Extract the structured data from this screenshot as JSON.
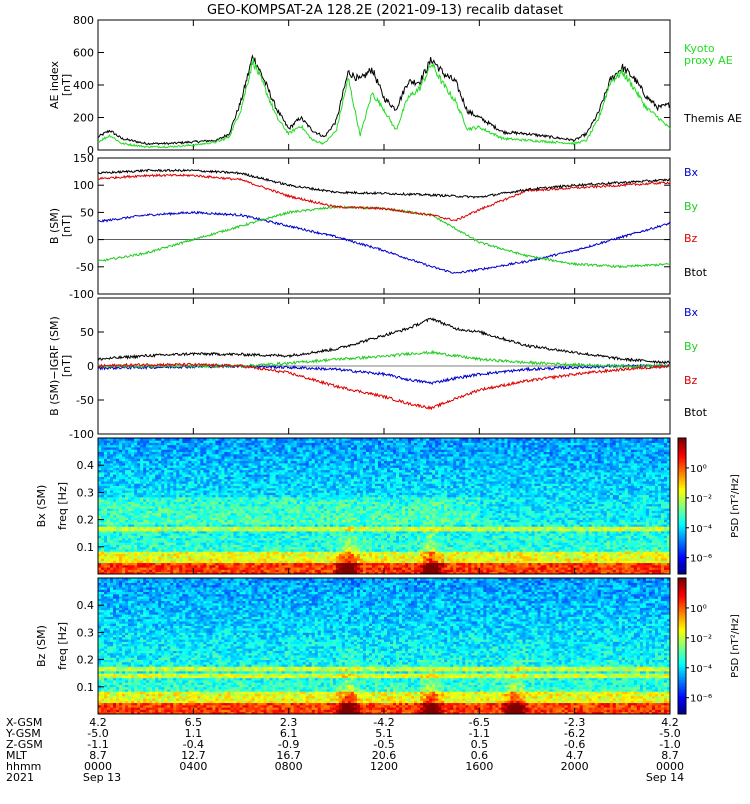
{
  "title": "GEO-KOMPSAT-2A 128.2E (2021-09-13) recalib dataset",
  "panels": {
    "ae": {
      "ylabel_line1": "AE index",
      "ylabel_line2": "[nT]",
      "yticks": [
        "800",
        "600",
        "400",
        "200",
        "0"
      ],
      "legend": [
        {
          "text": "Kyoto",
          "color": "#22dd22"
        },
        {
          "text": "proxy AE",
          "color": "#22dd22"
        },
        {
          "text": "Themis AE",
          "color": "#000000"
        }
      ]
    },
    "bsm": {
      "ylabel_line1": "B (SM)",
      "ylabel_line2": "[nT]",
      "yticks": [
        "150",
        "100",
        "50",
        "0",
        "-50",
        "-100"
      ],
      "legend": [
        {
          "text": "Bx",
          "color": "#0000cc"
        },
        {
          "text": "By",
          "color": "#22cc22"
        },
        {
          "text": "Bz",
          "color": "#dd0000"
        },
        {
          "text": "Btot",
          "color": "#000000"
        }
      ]
    },
    "bres": {
      "ylabel_line1": "B (SM)−IGRF (SM)",
      "ylabel_line2": "[nT]",
      "yticks": [
        "50",
        "0",
        "-50",
        "-100"
      ],
      "legend": [
        {
          "text": "Bx",
          "color": "#0000cc"
        },
        {
          "text": "By",
          "color": "#22cc22"
        },
        {
          "text": "Bz",
          "color": "#dd0000"
        },
        {
          "text": "Btot",
          "color": "#000000"
        }
      ]
    },
    "spec_bx": {
      "ylabel_line1": "Bx (SM)",
      "ylabel_line2": "freq [Hz]",
      "yticks": [
        "0.4",
        "0.3",
        "0.2",
        "0.1"
      ],
      "cbar_label": "PSD [nT²/Hz]",
      "cbar_ticks": [
        "10⁰",
        "10⁻²",
        "10⁻⁴",
        "10⁻⁶"
      ]
    },
    "spec_bz": {
      "ylabel_line1": "Bz (SM)",
      "ylabel_line2": "freq [Hz]",
      "yticks": [
        "0.4",
        "0.3",
        "0.2",
        "0.1"
      ],
      "cbar_label": "PSD [nT²/Hz]",
      "cbar_ticks": [
        "10⁰",
        "10⁻²",
        "10⁻⁴",
        "10⁻⁶"
      ]
    }
  },
  "ephemeris": {
    "rows": [
      {
        "label": "X-GSM",
        "values": [
          "4.2",
          "6.5",
          "2.3",
          "-4.2",
          "-6.5",
          "-2.3",
          "4.2"
        ]
      },
      {
        "label": "Y-GSM",
        "values": [
          "-5.0",
          "1.1",
          "6.1",
          "5.1",
          "-1.1",
          "-6.2",
          "-5.0"
        ]
      },
      {
        "label": "Z-GSM",
        "values": [
          "-1.1",
          "-0.4",
          "-0.9",
          "-0.5",
          "0.5",
          "-0.6",
          "-1.0"
        ]
      },
      {
        "label": "MLT",
        "values": [
          "8.7",
          "12.7",
          "16.7",
          "20.6",
          "0.6",
          "4.7",
          "8.7"
        ]
      },
      {
        "label": "hhmm",
        "values": [
          "0000",
          "0400",
          "0800",
          "1200",
          "1600",
          "2000",
          "0000"
        ]
      }
    ],
    "date_row": {
      "label": "2021",
      "start": "Sep 13",
      "end": "Sep 14"
    }
  },
  "chart_data": [
    {
      "type": "line",
      "panel": "AE index",
      "x_unit": "hours UT (2021-09-13)",
      "ylim": [
        0,
        800
      ],
      "series": [
        {
          "name": "Themis AE",
          "color": "#000000",
          "x": [
            0,
            0.5,
            1,
            2,
            3,
            4,
            5,
            5.5,
            6,
            6.5,
            7,
            7.5,
            8,
            8.5,
            9,
            9.5,
            10,
            10.5,
            11,
            11.5,
            12,
            12.5,
            13,
            13.5,
            14,
            14.5,
            15,
            15.5,
            16,
            17,
            18,
            19,
            20,
            20.5,
            21,
            21.5,
            22,
            22.5,
            23,
            23.5,
            24
          ],
          "y": [
            80,
            120,
            70,
            40,
            40,
            50,
            60,
            100,
            300,
            580,
            420,
            250,
            130,
            200,
            120,
            80,
            180,
            480,
            430,
            500,
            320,
            250,
            420,
            420,
            560,
            470,
            420,
            240,
            200,
            110,
            100,
            80,
            60,
            100,
            230,
            430,
            510,
            440,
            330,
            260,
            280
          ]
        },
        {
          "name": "Kyoto proxy AE",
          "color": "#22dd22",
          "x": [
            0,
            0.5,
            1,
            2,
            3,
            4,
            5,
            5.5,
            6,
            6.5,
            7,
            7.5,
            8,
            8.5,
            9,
            9.5,
            10,
            10.5,
            11,
            11.5,
            12,
            12.5,
            13,
            13.5,
            14,
            14.5,
            15,
            15.5,
            16,
            17,
            18,
            19,
            20,
            20.5,
            21,
            21.5,
            22,
            22.5,
            23,
            23.5,
            24
          ],
          "y": [
            50,
            90,
            40,
            20,
            20,
            30,
            50,
            80,
            250,
            550,
            380,
            200,
            100,
            150,
            60,
            40,
            120,
            440,
            90,
            350,
            250,
            120,
            320,
            380,
            530,
            400,
            300,
            130,
            140,
            70,
            60,
            50,
            40,
            60,
            190,
            420,
            480,
            380,
            260,
            200,
            130
          ]
        }
      ]
    },
    {
      "type": "line",
      "panel": "B (SM)",
      "x_unit": "hours UT (2021-09-13)",
      "ylim": [
        -100,
        150
      ],
      "series": [
        {
          "name": "Bx",
          "color": "#0000cc",
          "x": [
            0,
            2,
            4,
            6,
            8,
            10,
            12,
            14,
            15,
            16,
            18,
            20,
            22,
            24
          ],
          "y": [
            33,
            45,
            50,
            45,
            25,
            5,
            -20,
            -50,
            -62,
            -55,
            -40,
            -20,
            5,
            30
          ]
        },
        {
          "name": "By",
          "color": "#22cc22",
          "x": [
            0,
            2,
            4,
            6,
            8,
            10,
            12,
            14,
            15,
            16,
            18,
            20,
            22,
            24
          ],
          "y": [
            -40,
            -25,
            0,
            25,
            50,
            60,
            57,
            45,
            20,
            -5,
            -30,
            -45,
            -50,
            -45
          ]
        },
        {
          "name": "Bz",
          "color": "#dd0000",
          "x": [
            0,
            2,
            4,
            6,
            8,
            10,
            12,
            14,
            15,
            16,
            18,
            20,
            22,
            24
          ],
          "y": [
            112,
            118,
            118,
            110,
            80,
            60,
            57,
            45,
            35,
            55,
            90,
            95,
            100,
            105
          ]
        },
        {
          "name": "Btot",
          "color": "#000000",
          "x": [
            0,
            2,
            4,
            6,
            8,
            10,
            12,
            14,
            15,
            16,
            18,
            20,
            22,
            24
          ],
          "y": [
            122,
            127,
            127,
            122,
            100,
            87,
            85,
            82,
            80,
            78,
            92,
            100,
            105,
            110
          ]
        }
      ]
    },
    {
      "type": "line",
      "panel": "B (SM)-IGRF (SM)",
      "x_unit": "hours UT (2021-09-13)",
      "ylim": [
        -100,
        100
      ],
      "series": [
        {
          "name": "Bx",
          "color": "#0000cc",
          "x": [
            0,
            2,
            4,
            6,
            8,
            10,
            12,
            13,
            14,
            15,
            16,
            18,
            20,
            22,
            24
          ],
          "y": [
            -3,
            -2,
            -1,
            0,
            -2,
            -5,
            -12,
            -20,
            -25,
            -18,
            -12,
            -5,
            -2,
            0,
            0
          ]
        },
        {
          "name": "By",
          "color": "#22cc22",
          "x": [
            0,
            2,
            4,
            6,
            8,
            10,
            12,
            13,
            14,
            15,
            16,
            18,
            20,
            22,
            24
          ],
          "y": [
            0,
            0,
            0,
            0,
            4,
            10,
            14,
            18,
            20,
            15,
            10,
            5,
            2,
            0,
            0
          ]
        },
        {
          "name": "Bz",
          "color": "#dd0000",
          "x": [
            0,
            2,
            4,
            6,
            8,
            10,
            12,
            13,
            14,
            15,
            16,
            18,
            20,
            22,
            24
          ],
          "y": [
            0,
            2,
            2,
            0,
            -10,
            -30,
            -45,
            -55,
            -62,
            -48,
            -35,
            -22,
            -12,
            -5,
            0
          ]
        },
        {
          "name": "Btot",
          "color": "#000000",
          "x": [
            0,
            2,
            4,
            6,
            8,
            10,
            12,
            13,
            14,
            15,
            16,
            18,
            20,
            22,
            24
          ],
          "y": [
            10,
            15,
            18,
            17,
            15,
            25,
            45,
            55,
            70,
            55,
            50,
            30,
            20,
            10,
            5
          ]
        }
      ]
    },
    {
      "type": "heatmap",
      "panel": "Bx (SM) spectrogram",
      "ylabel": "freq [Hz]",
      "ylim": [
        0,
        0.5
      ],
      "zlabel": "PSD [nT^2/Hz]",
      "zlim_log10": [
        -7,
        1
      ],
      "features": {
        "harmonic_line_hz": 0.165,
        "broadband_enhancements_hour": [
          10.5,
          14
        ]
      }
    },
    {
      "type": "heatmap",
      "panel": "Bz (SM) spectrogram",
      "ylabel": "freq [Hz]",
      "ylim": [
        0,
        0.5
      ],
      "zlabel": "PSD [nT^2/Hz]",
      "zlim_log10": [
        -7,
        1
      ],
      "features": {
        "harmonic_lines_hz": [
          0.14,
          0.165
        ],
        "broadband_enhancements_hour": [
          10.5,
          14,
          17.5
        ]
      }
    }
  ]
}
